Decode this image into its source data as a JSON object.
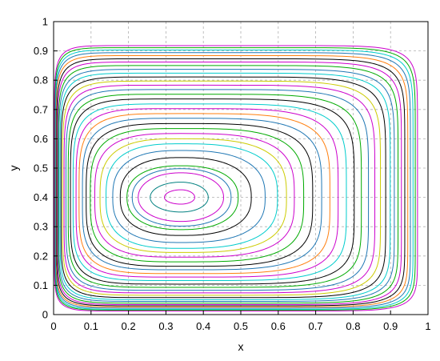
{
  "chart_data": {
    "type": "line",
    "title": "",
    "xlabel": "x",
    "ylabel": "y",
    "xlim": [
      0,
      1
    ],
    "ylim": [
      0,
      1
    ],
    "grid": true,
    "legend": "none",
    "x_ticks": [
      "0",
      "0.1",
      "0.2",
      "0.3",
      "0.4",
      "0.5",
      "0.6",
      "0.7",
      "0.8",
      "0.9",
      "1"
    ],
    "y_ticks": [
      "0",
      "0.1",
      "0.2",
      "0.3",
      "0.4",
      "0.5",
      "0.6",
      "0.7",
      "0.8",
      "0.9",
      "1"
    ],
    "center": [
      0.34,
      0.4
    ],
    "series": [
      {
        "xmin": 0.296,
        "xmax": 0.377,
        "ymin": 0.377,
        "ymax": 0.426,
        "color": "#cc00cc"
      },
      {
        "xmin": 0.258,
        "xmax": 0.413,
        "ymin": 0.35,
        "ymax": 0.452,
        "color": "#008080"
      },
      {
        "xmin": 0.226,
        "xmax": 0.454,
        "ymin": 0.318,
        "ymax": 0.484,
        "color": "#cc00cc"
      },
      {
        "xmin": 0.21,
        "xmax": 0.474,
        "ymin": 0.302,
        "ymax": 0.498,
        "color": "#1f77b4"
      },
      {
        "xmin": 0.196,
        "xmax": 0.493,
        "ymin": 0.29,
        "ymax": 0.508,
        "color": "#00aa00"
      },
      {
        "xmin": 0.178,
        "xmax": 0.528,
        "ymin": 0.27,
        "ymax": 0.536,
        "color": "#000000"
      },
      {
        "xmin": 0.158,
        "xmax": 0.565,
        "ymin": 0.246,
        "ymax": 0.56,
        "color": "#1f77b4"
      },
      {
        "xmin": 0.14,
        "xmax": 0.598,
        "ymin": 0.226,
        "ymax": 0.583,
        "color": "#00cccc"
      },
      {
        "xmin": 0.124,
        "xmax": 0.622,
        "ymin": 0.212,
        "ymax": 0.6,
        "color": "#cccc00"
      },
      {
        "xmin": 0.11,
        "xmax": 0.643,
        "ymin": 0.196,
        "ymax": 0.618,
        "color": "#cc00cc"
      },
      {
        "xmin": 0.098,
        "xmax": 0.668,
        "ymin": 0.18,
        "ymax": 0.635,
        "color": "#00aa00"
      },
      {
        "xmin": 0.087,
        "xmax": 0.692,
        "ymin": 0.165,
        "ymax": 0.652,
        "color": "#000000"
      },
      {
        "xmin": 0.077,
        "xmax": 0.716,
        "ymin": 0.153,
        "ymax": 0.67,
        "color": "#1f77b4"
      },
      {
        "xmin": 0.068,
        "xmax": 0.738,
        "ymin": 0.14,
        "ymax": 0.686,
        "color": "#ff7f0e"
      },
      {
        "xmin": 0.06,
        "xmax": 0.76,
        "ymin": 0.128,
        "ymax": 0.703,
        "color": "#cc00cc"
      },
      {
        "xmin": 0.052,
        "xmax": 0.782,
        "ymin": 0.116,
        "ymax": 0.719,
        "color": "#00cccc"
      },
      {
        "xmin": 0.045,
        "xmax": 0.803,
        "ymin": 0.104,
        "ymax": 0.736,
        "color": "#000000"
      },
      {
        "xmin": 0.039,
        "xmax": 0.822,
        "ymin": 0.093,
        "ymax": 0.752,
        "color": "#00aa00"
      },
      {
        "xmin": 0.033,
        "xmax": 0.841,
        "ymin": 0.083,
        "ymax": 0.768,
        "color": "#1f77b4"
      },
      {
        "xmin": 0.028,
        "xmax": 0.858,
        "ymin": 0.074,
        "ymax": 0.783,
        "color": "#cc00cc"
      },
      {
        "xmin": 0.024,
        "xmax": 0.873,
        "ymin": 0.066,
        "ymax": 0.797,
        "color": "#cccc00"
      },
      {
        "xmin": 0.02,
        "xmax": 0.887,
        "ymin": 0.058,
        "ymax": 0.811,
        "color": "#000000"
      },
      {
        "xmin": 0.017,
        "xmax": 0.899,
        "ymin": 0.051,
        "ymax": 0.824,
        "color": "#00cccc"
      },
      {
        "xmin": 0.014,
        "xmax": 0.91,
        "ymin": 0.045,
        "ymax": 0.837,
        "color": "#1f77b4"
      },
      {
        "xmin": 0.012,
        "xmax": 0.92,
        "ymin": 0.039,
        "ymax": 0.85,
        "color": "#00aa00"
      },
      {
        "xmin": 0.01,
        "xmax": 0.929,
        "ymin": 0.034,
        "ymax": 0.862,
        "color": "#cc00cc"
      },
      {
        "xmin": 0.008,
        "xmax": 0.938,
        "ymin": 0.03,
        "ymax": 0.873,
        "color": "#000000"
      },
      {
        "xmin": 0.006,
        "xmax": 0.946,
        "ymin": 0.026,
        "ymax": 0.884,
        "color": "#ff7f0e"
      },
      {
        "xmin": 0.005,
        "xmax": 0.953,
        "ymin": 0.022,
        "ymax": 0.894,
        "color": "#1f77b4"
      },
      {
        "xmin": 0.004,
        "xmax": 0.96,
        "ymin": 0.018,
        "ymax": 0.903,
        "color": "#00cccc"
      },
      {
        "xmin": 0.003,
        "xmax": 0.966,
        "ymin": 0.015,
        "ymax": 0.911,
        "color": "#00aa00"
      },
      {
        "xmin": 0.002,
        "xmax": 0.972,
        "ymin": 0.012,
        "ymax": 0.918,
        "color": "#cc00cc"
      }
    ]
  }
}
